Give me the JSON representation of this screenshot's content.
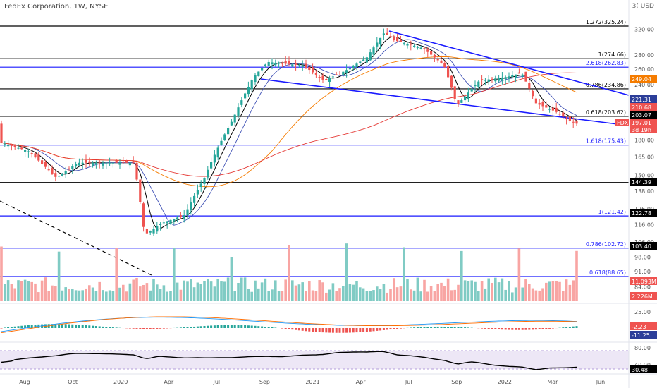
{
  "header": {
    "symbol_title": "FedEx Corporation, 1W, NYSE",
    "currency": "3( USD"
  },
  "chart_data": {
    "type": "candlestick",
    "price_axis": {
      "ticks": [
        "320.00",
        "280.00",
        "260.00",
        "240.00",
        "180.00",
        "165.00",
        "150.00",
        "138.00",
        "126.00",
        "116.00",
        "106.00",
        "98.00",
        "91.00",
        "84.00"
      ]
    },
    "time_axis": {
      "labels": [
        "Aug",
        "Oct",
        "2020",
        "Apr",
        "Jul",
        "Sep",
        "2021",
        "Apr",
        "Jul",
        "Sep",
        "2022",
        "Mar",
        "Jun"
      ]
    },
    "horizontal_levels": [
      {
        "label": "1.272(325.24)",
        "price": 325.24,
        "color": "#000000"
      },
      {
        "label": "1(274.66)",
        "price": 274.66,
        "color": "#000000"
      },
      {
        "label": "2.618(262.83)",
        "price": 262.83,
        "color": "#1a1aff"
      },
      {
        "label": "0.786(234.86)",
        "price": 234.86,
        "color": "#000000"
      },
      {
        "label": "0.618(203.62)",
        "price": 203.62,
        "color": "#000000"
      },
      {
        "label": "1.618(175.43)",
        "price": 175.43,
        "color": "#1a1aff"
      },
      {
        "label": "",
        "price": 144.39,
        "color": "#000000"
      },
      {
        "label": "1(121.42)",
        "price": 121.42,
        "color": "#1a1aff"
      },
      {
        "label": "0.786(102.72)",
        "price": 102.72,
        "color": "#1a1aff"
      },
      {
        "label": "0.618(88.65)",
        "price": 88.65,
        "color": "#1a1aff"
      }
    ],
    "price_badges": [
      {
        "text": "249.04",
        "color": "#f57c00"
      },
      {
        "text": "221.31",
        "color": "#2c3e99"
      },
      {
        "text": "210.68",
        "color": "#ef5350"
      },
      {
        "text": "203.07",
        "color": "#000000"
      },
      {
        "text": "197.01",
        "color": "#ef5350"
      },
      {
        "text": "3d 19h",
        "color": "#ef5350"
      },
      {
        "text": "FDX",
        "color": "#ef5350"
      },
      {
        "text": "144.39",
        "color": "#000000"
      },
      {
        "text": "122.78",
        "color": "#000000"
      },
      {
        "text": "103.40",
        "color": "#000000"
      },
      {
        "text": "11.093M",
        "color": "#ef5350"
      },
      {
        "text": "2.226M",
        "color": "#ef5350"
      }
    ],
    "macd": {
      "ticks": [
        "25.00"
      ],
      "badges": [
        {
          "text": "-2.23",
          "color": "#ef5350"
        },
        {
          "text": "-11.25",
          "color": "#2c3e99"
        }
      ]
    },
    "rsi": {
      "ticks": [
        "80.00",
        "40.00"
      ],
      "badges": [
        {
          "text": "30.48",
          "color": "#000000"
        }
      ]
    }
  }
}
